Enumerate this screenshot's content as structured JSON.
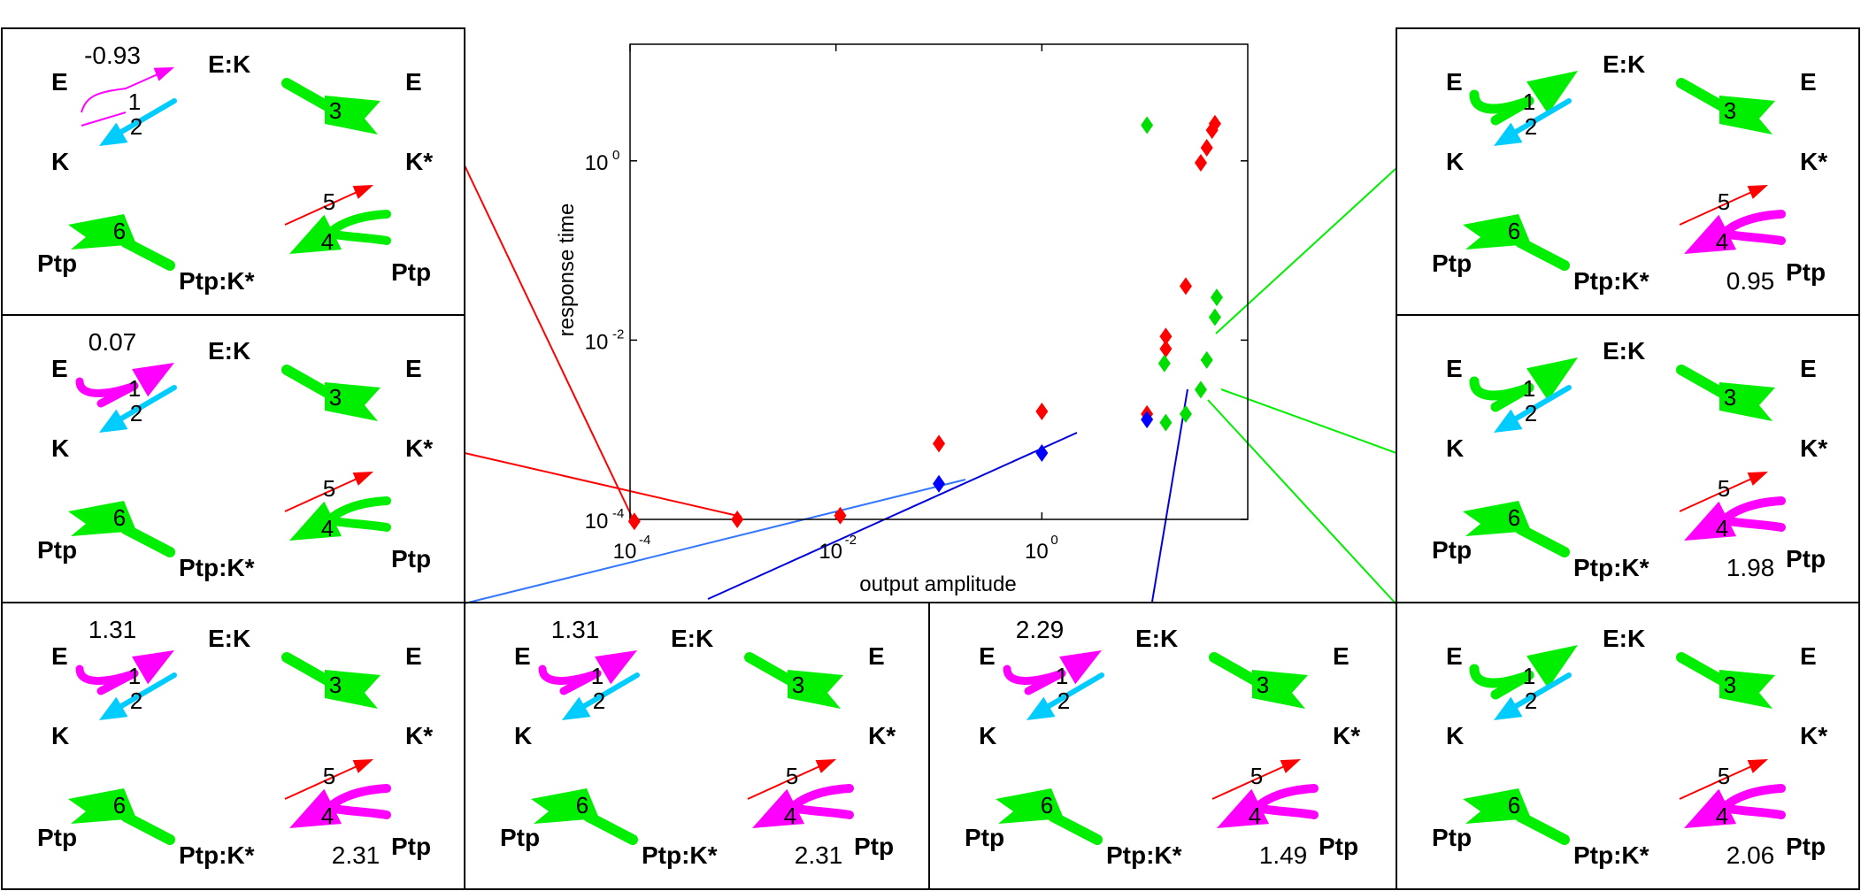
{
  "chart_data": {
    "type": "scatter",
    "title": "",
    "xlabel": "output amplitude",
    "ylabel": "response time",
    "xscale": "log",
    "yscale": "log",
    "xlim": [
      0.0001,
      100
    ],
    "ylim": [
      0.0001,
      20
    ],
    "x_ticks": [
      {
        "base": "10",
        "exp": "-4"
      },
      {
        "base": "10",
        "exp": "-2"
      },
      {
        "base": "10",
        "exp": "0"
      }
    ],
    "y_ticks": [
      {
        "base": "10",
        "exp": "-4"
      },
      {
        "base": "10",
        "exp": "-2"
      },
      {
        "base": "10",
        "exp": "0"
      }
    ],
    "grid": false,
    "series": [
      {
        "color": "#ff0000",
        "points": [
          [
            0.00011,
            9.5e-05
          ],
          [
            0.0011,
            0.0001
          ],
          [
            0.011,
            0.00011
          ],
          [
            0.1,
            0.0007
          ],
          [
            1.0,
            0.0016
          ],
          [
            10.5,
            0.0015
          ],
          [
            16,
            0.011
          ],
          [
            16,
            0.008
          ],
          [
            25,
            0.04
          ],
          [
            35,
            0.95
          ],
          [
            40,
            1.4
          ],
          [
            45,
            2.2
          ],
          [
            48,
            2.6
          ]
        ]
      },
      {
        "color": "#00dd00",
        "points": [
          [
            10.5,
            2.5
          ],
          [
            15.5,
            0.0055
          ],
          [
            16,
            0.0012
          ],
          [
            25,
            0.0015
          ],
          [
            35,
            0.0028
          ],
          [
            40,
            0.006
          ],
          [
            48,
            0.018
          ],
          [
            50,
            0.03
          ]
        ]
      },
      {
        "color": "#0000ff",
        "points": [
          [
            0.1,
            0.00025
          ],
          [
            1.0,
            0.00055
          ],
          [
            10.5,
            0.0013
          ]
        ]
      }
    ]
  },
  "panels": [
    {
      "id": "p1",
      "edge_value": "-0.93",
      "e": "E",
      "ek": "E:K",
      "e2": "E",
      "k": "K",
      "kstar": "K*",
      "ptp": "Ptp",
      "ptpk": "Ptp:K*",
      "ptp2": "Ptp",
      "n1": "1",
      "n2": "2",
      "n3": "3",
      "n4": "4",
      "n5": "5",
      "n6": "6"
    },
    {
      "id": "p2",
      "edge_value": "0.07",
      "e": "E",
      "ek": "E:K",
      "e2": "E",
      "k": "K",
      "kstar": "K*",
      "ptp": "Ptp",
      "ptpk": "Ptp:K*",
      "ptp2": "Ptp",
      "n1": "1",
      "n2": "2",
      "n3": "3",
      "n4": "4",
      "n5": "5",
      "n6": "6"
    },
    {
      "id": "p3",
      "edge_value": "1.31",
      "edge_value2": "2.31",
      "e": "E",
      "ek": "E:K",
      "e2": "E",
      "k": "K",
      "kstar": "K*",
      "ptp": "Ptp",
      "ptpk": "Ptp:K*",
      "ptp2": "Ptp",
      "n1": "1",
      "n2": "2",
      "n3": "3",
      "n4": "4",
      "n5": "5",
      "n6": "6"
    },
    {
      "id": "p4",
      "edge_value": "1.31",
      "edge_value2": "2.31",
      "e": "E",
      "ek": "E:K",
      "e2": "E",
      "k": "K",
      "kstar": "K*",
      "ptp": "Ptp",
      "ptpk": "Ptp:K*",
      "ptp2": "Ptp",
      "n1": "1",
      "n2": "2",
      "n3": "3",
      "n4": "4",
      "n5": "5",
      "n6": "6"
    },
    {
      "id": "p5",
      "edge_value": "2.29",
      "edge_value2": "1.49",
      "e": "E",
      "ek": "E:K",
      "e2": "E",
      "k": "K",
      "kstar": "K*",
      "ptp": "Ptp",
      "ptpk": "Ptp:K*",
      "ptp2": "Ptp",
      "n1": "1",
      "n2": "2",
      "n3": "3",
      "n4": "4",
      "n5": "5",
      "n6": "6"
    },
    {
      "id": "p6",
      "edge_value2": "2.06",
      "e": "E",
      "ek": "E:K",
      "e2": "E",
      "k": "K",
      "kstar": "K*",
      "ptp": "Ptp",
      "ptpk": "Ptp:K*",
      "ptp2": "Ptp",
      "n1": "1",
      "n2": "2",
      "n3": "3",
      "n4": "4",
      "n5": "5",
      "n6": "6"
    },
    {
      "id": "p7",
      "edge_value2": "1.98",
      "e": "E",
      "ek": "E:K",
      "e2": "E",
      "k": "K",
      "kstar": "K*",
      "ptp": "Ptp",
      "ptpk": "Ptp:K*",
      "ptp2": "Ptp",
      "n1": "1",
      "n2": "2",
      "n3": "3",
      "n4": "4",
      "n5": "5",
      "n6": "6"
    },
    {
      "id": "p8",
      "edge_value2": "0.95",
      "e": "E",
      "ek": "E:K",
      "e2": "E",
      "k": "K",
      "kstar": "K*",
      "ptp": "Ptp",
      "ptpk": "Ptp:K*",
      "ptp2": "Ptp",
      "n1": "1",
      "n2": "2",
      "n3": "3",
      "n4": "4",
      "n5": "5",
      "n6": "6"
    }
  ],
  "colors": {
    "red": "#ff0000",
    "green": "#00ee00",
    "blue": "#0000dd",
    "light_blue": "#3377ff",
    "magenta": "#ff00ff",
    "cyan": "#00ccff"
  }
}
